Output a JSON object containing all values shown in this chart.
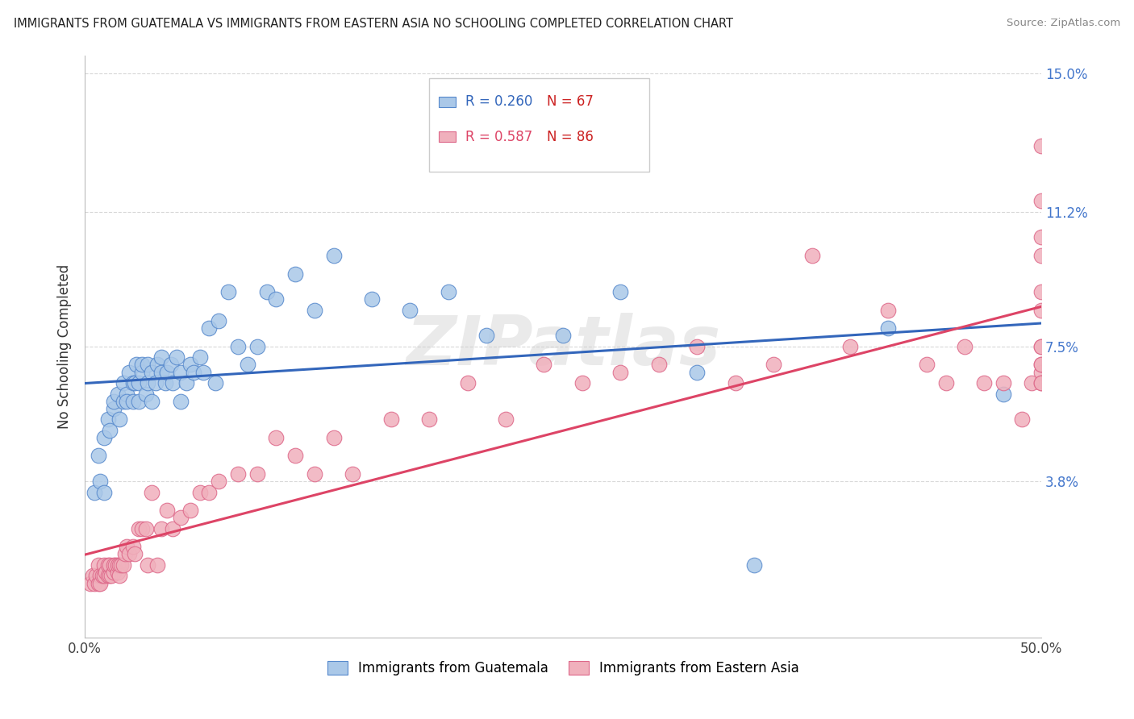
{
  "title": "IMMIGRANTS FROM GUATEMALA VS IMMIGRANTS FROM EASTERN ASIA NO SCHOOLING COMPLETED CORRELATION CHART",
  "source": "Source: ZipAtlas.com",
  "ylabel": "No Schooling Completed",
  "xlim": [
    0.0,
    0.5
  ],
  "ylim": [
    -0.005,
    0.155
  ],
  "ytick_labels": [
    "3.8%",
    "7.5%",
    "11.2%",
    "15.0%"
  ],
  "ytick_positions": [
    0.038,
    0.075,
    0.112,
    0.15
  ],
  "grid_color": "#d8d8d8",
  "blue_color": "#aac8e8",
  "pink_color": "#f0b0bc",
  "blue_edge_color": "#5588cc",
  "pink_edge_color": "#dd6688",
  "blue_line_color": "#3366bb",
  "pink_line_color": "#dd4466",
  "watermark": "ZIPatlas",
  "legend_r1": "R = 0.260",
  "legend_n1": "N = 67",
  "legend_r2": "R = 0.587",
  "legend_n2": "N = 86",
  "blue_scatter_x": [
    0.005,
    0.007,
    0.008,
    0.01,
    0.01,
    0.012,
    0.013,
    0.015,
    0.015,
    0.017,
    0.018,
    0.02,
    0.02,
    0.022,
    0.022,
    0.023,
    0.025,
    0.025,
    0.026,
    0.027,
    0.028,
    0.028,
    0.03,
    0.03,
    0.032,
    0.033,
    0.033,
    0.035,
    0.035,
    0.037,
    0.038,
    0.04,
    0.04,
    0.042,
    0.043,
    0.045,
    0.046,
    0.048,
    0.05,
    0.05,
    0.053,
    0.055,
    0.057,
    0.06,
    0.062,
    0.065,
    0.068,
    0.07,
    0.075,
    0.08,
    0.085,
    0.09,
    0.095,
    0.1,
    0.11,
    0.12,
    0.13,
    0.15,
    0.17,
    0.19,
    0.21,
    0.25,
    0.28,
    0.32,
    0.35,
    0.42,
    0.48
  ],
  "blue_scatter_y": [
    0.035,
    0.045,
    0.038,
    0.05,
    0.035,
    0.055,
    0.052,
    0.058,
    0.06,
    0.062,
    0.055,
    0.06,
    0.065,
    0.062,
    0.06,
    0.068,
    0.06,
    0.065,
    0.065,
    0.07,
    0.06,
    0.065,
    0.068,
    0.07,
    0.062,
    0.065,
    0.07,
    0.06,
    0.068,
    0.065,
    0.07,
    0.068,
    0.072,
    0.065,
    0.068,
    0.07,
    0.065,
    0.072,
    0.06,
    0.068,
    0.065,
    0.07,
    0.068,
    0.072,
    0.068,
    0.08,
    0.065,
    0.082,
    0.09,
    0.075,
    0.07,
    0.075,
    0.09,
    0.088,
    0.095,
    0.085,
    0.1,
    0.088,
    0.085,
    0.09,
    0.078,
    0.078,
    0.09,
    0.068,
    0.015,
    0.08,
    0.062
  ],
  "pink_scatter_x": [
    0.003,
    0.004,
    0.005,
    0.006,
    0.007,
    0.007,
    0.008,
    0.008,
    0.009,
    0.01,
    0.01,
    0.011,
    0.012,
    0.012,
    0.013,
    0.013,
    0.014,
    0.015,
    0.015,
    0.016,
    0.017,
    0.017,
    0.018,
    0.018,
    0.019,
    0.02,
    0.021,
    0.022,
    0.023,
    0.025,
    0.026,
    0.028,
    0.03,
    0.032,
    0.033,
    0.035,
    0.038,
    0.04,
    0.043,
    0.046,
    0.05,
    0.055,
    0.06,
    0.065,
    0.07,
    0.08,
    0.09,
    0.1,
    0.11,
    0.12,
    0.13,
    0.14,
    0.16,
    0.18,
    0.2,
    0.22,
    0.24,
    0.26,
    0.28,
    0.3,
    0.32,
    0.34,
    0.36,
    0.38,
    0.4,
    0.42,
    0.44,
    0.45,
    0.46,
    0.47,
    0.48,
    0.49,
    0.495,
    0.5,
    0.5,
    0.5,
    0.5,
    0.5,
    0.5,
    0.5,
    0.5,
    0.5,
    0.5,
    0.5,
    0.5,
    0.5
  ],
  "pink_scatter_y": [
    0.01,
    0.012,
    0.01,
    0.012,
    0.01,
    0.015,
    0.012,
    0.01,
    0.012,
    0.012,
    0.015,
    0.013,
    0.012,
    0.015,
    0.012,
    0.015,
    0.012,
    0.013,
    0.015,
    0.015,
    0.013,
    0.015,
    0.015,
    0.012,
    0.015,
    0.015,
    0.018,
    0.02,
    0.018,
    0.02,
    0.018,
    0.025,
    0.025,
    0.025,
    0.015,
    0.035,
    0.015,
    0.025,
    0.03,
    0.025,
    0.028,
    0.03,
    0.035,
    0.035,
    0.038,
    0.04,
    0.04,
    0.05,
    0.045,
    0.04,
    0.05,
    0.04,
    0.055,
    0.055,
    0.065,
    0.055,
    0.07,
    0.065,
    0.068,
    0.07,
    0.075,
    0.065,
    0.07,
    0.1,
    0.075,
    0.085,
    0.07,
    0.065,
    0.075,
    0.065,
    0.065,
    0.055,
    0.065,
    0.068,
    0.105,
    0.075,
    0.09,
    0.065,
    0.13,
    0.07,
    0.115,
    0.1,
    0.07,
    0.085,
    0.065,
    0.075
  ]
}
